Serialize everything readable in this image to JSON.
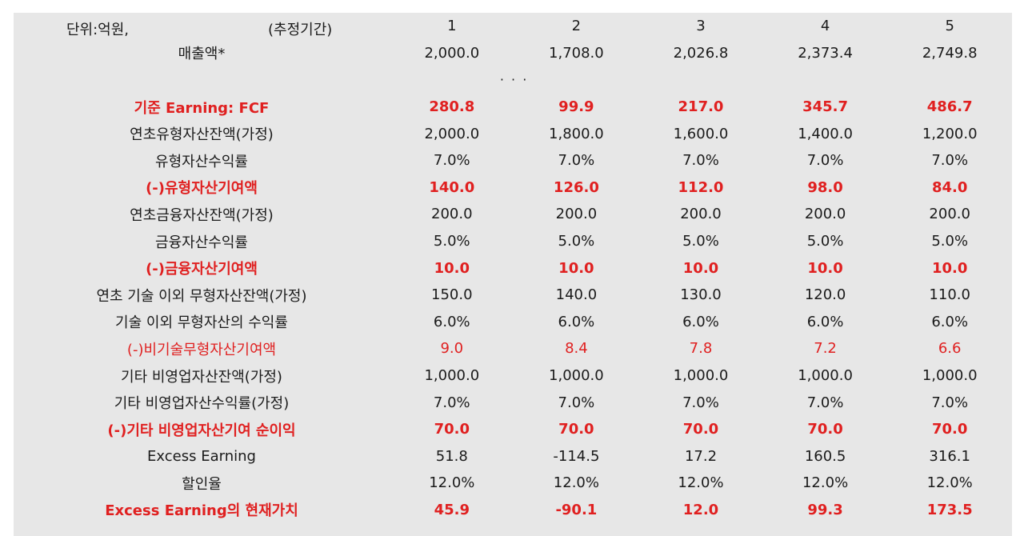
{
  "header": {
    "unit_label": "단위:억원,",
    "period_label": "(추정기간)",
    "periods": [
      "1",
      "2",
      "3",
      "4",
      "5"
    ]
  },
  "ellipsis": "· · ·",
  "colors": {
    "highlight": "#e02020",
    "text": "#1a1a1a",
    "sheet_bg": "#e7e7e7"
  },
  "rows_top": [
    {
      "label": "매출액*",
      "values": [
        "2,000.0",
        "1,708.0",
        "2,026.8",
        "2,373.4",
        "2,749.8"
      ],
      "style": "normal"
    }
  ],
  "rows": [
    {
      "label": "기준 Earning: FCF",
      "values": [
        "280.8",
        "99.9",
        "217.0",
        "345.7",
        "486.7"
      ],
      "style": "red-bold"
    },
    {
      "label": "연초유형자산잔액(가정)",
      "values": [
        "2,000.0",
        "1,800.0",
        "1,600.0",
        "1,400.0",
        "1,200.0"
      ],
      "style": "normal"
    },
    {
      "label": "유형자산수익률",
      "values": [
        "7.0%",
        "7.0%",
        "7.0%",
        "7.0%",
        "7.0%"
      ],
      "style": "normal"
    },
    {
      "label": "(-)유형자산기여액",
      "values": [
        "140.0",
        "126.0",
        "112.0",
        "98.0",
        "84.0"
      ],
      "style": "red-bold"
    },
    {
      "label": "연초금융자산잔액(가정)",
      "values": [
        "200.0",
        "200.0",
        "200.0",
        "200.0",
        "200.0"
      ],
      "style": "normal"
    },
    {
      "label": "금융자산수익률",
      "values": [
        "5.0%",
        "5.0%",
        "5.0%",
        "5.0%",
        "5.0%"
      ],
      "style": "normal"
    },
    {
      "label": "(-)금융자산기여액",
      "values": [
        "10.0",
        "10.0",
        "10.0",
        "10.0",
        "10.0"
      ],
      "style": "red-bold"
    },
    {
      "label": "연초 기술 이외 무형자산잔액(가정)",
      "values": [
        "150.0",
        "140.0",
        "130.0",
        "120.0",
        "110.0"
      ],
      "style": "normal"
    },
    {
      "label": "기술 이외 무형자산의 수익률",
      "values": [
        "6.0%",
        "6.0%",
        "6.0%",
        "6.0%",
        "6.0%"
      ],
      "style": "normal"
    },
    {
      "label": "(-)비기술무형자산기여액",
      "values": [
        "9.0",
        "8.4",
        "7.8",
        "7.2",
        "6.6"
      ],
      "style": "red"
    },
    {
      "label": "기타 비영업자산잔액(가정)",
      "values": [
        "1,000.0",
        "1,000.0",
        "1,000.0",
        "1,000.0",
        "1,000.0"
      ],
      "style": "normal"
    },
    {
      "label": "기타 비영업자산수익률(가정)",
      "values": [
        "7.0%",
        "7.0%",
        "7.0%",
        "7.0%",
        "7.0%"
      ],
      "style": "normal"
    },
    {
      "label": "(-)기타 비영업자산기여 순이익",
      "values": [
        "70.0",
        "70.0",
        "70.0",
        "70.0",
        "70.0"
      ],
      "style": "red-bold"
    },
    {
      "label": "Excess Earning",
      "values": [
        "51.8",
        "-114.5",
        "17.2",
        "160.5",
        "316.1"
      ],
      "style": "normal"
    },
    {
      "label": "할인율",
      "values": [
        "12.0%",
        "12.0%",
        "12.0%",
        "12.0%",
        "12.0%"
      ],
      "style": "normal"
    },
    {
      "label": "Excess Earning의 현재가치",
      "values": [
        "45.9",
        "-90.1",
        "12.0",
        "99.3",
        "173.5"
      ],
      "style": "red-bold"
    }
  ]
}
